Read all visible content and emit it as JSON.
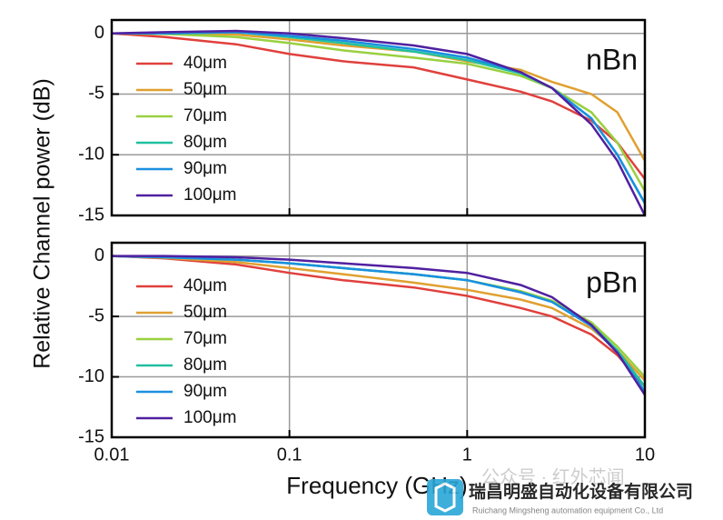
{
  "chart_data": [
    {
      "type": "line",
      "annotation": "nBn",
      "ylabel": "Relative Channel power (dB)",
      "x": [
        0.01,
        0.02,
        0.05,
        0.1,
        0.2,
        0.5,
        1,
        2,
        3,
        5,
        7,
        10
      ],
      "xlim": [
        0.01,
        10
      ],
      "xticks": [
        0.01,
        0.1,
        1,
        10
      ],
      "log_x": true,
      "show_xtick_labels": false,
      "ylim": [
        -15,
        1.1
      ],
      "yticks": [
        0,
        -5,
        -10,
        -15
      ],
      "grid": true,
      "legend": "left",
      "series": [
        {
          "name": "40μm",
          "color": "#e0403c",
          "values": [
            0,
            -0.3,
            -0.9,
            -1.7,
            -2.3,
            -2.8,
            -3.8,
            -4.8,
            -5.6,
            -7.2,
            -9,
            -12
          ]
        },
        {
          "name": "50μm",
          "color": "#e0a030",
          "values": [
            0,
            0,
            -0.1,
            -0.5,
            -1.0,
            -1.5,
            -2.3,
            -3.0,
            -4.0,
            -5.0,
            -6.5,
            -10.5
          ]
        },
        {
          "name": "70μm",
          "color": "#99d040",
          "values": [
            0,
            -0.05,
            -0.3,
            -0.8,
            -1.4,
            -2.0,
            -2.5,
            -3.5,
            -4.5,
            -6.5,
            -9,
            -13
          ]
        },
        {
          "name": "80μm",
          "color": "#20c0a0",
          "values": [
            0,
            0,
            0.1,
            -0.3,
            -0.8,
            -1.5,
            -2.2,
            -3.3,
            -4.5,
            -7,
            -10,
            -14
          ]
        },
        {
          "name": "90μm",
          "color": "#1a90e0",
          "values": [
            0,
            0,
            0.1,
            -0.2,
            -0.6,
            -1.3,
            -2.0,
            -3.2,
            -4.5,
            -7,
            -10,
            -14
          ]
        },
        {
          "name": "100μm",
          "color": "#5020a0",
          "values": [
            0,
            0.1,
            0.2,
            0,
            -0.4,
            -1.0,
            -1.7,
            -3.2,
            -4.5,
            -7.5,
            -10.5,
            -15
          ]
        }
      ]
    },
    {
      "type": "line",
      "annotation": "pBn",
      "xlabel": "Frequency (GHz)",
      "x": [
        0.01,
        0.02,
        0.05,
        0.1,
        0.2,
        0.5,
        1,
        2,
        3,
        5,
        7,
        10
      ],
      "xlim": [
        0.01,
        10
      ],
      "xticks": [
        0.01,
        0.1,
        1,
        10
      ],
      "log_x": true,
      "show_xtick_labels": true,
      "ylim": [
        -15,
        1.1
      ],
      "yticks": [
        0,
        -5,
        -10,
        -15
      ],
      "grid": true,
      "legend": "left",
      "series": [
        {
          "name": "40μm",
          "color": "#e0403c",
          "values": [
            0,
            -0.2,
            -0.7,
            -1.4,
            -2.0,
            -2.6,
            -3.3,
            -4.3,
            -5.0,
            -6.5,
            -8.2,
            -10.8
          ]
        },
        {
          "name": "50μm",
          "color": "#e0a030",
          "values": [
            0,
            -0.15,
            -0.5,
            -1.0,
            -1.5,
            -2.2,
            -2.8,
            -3.6,
            -4.3,
            -6.0,
            -7.8,
            -10.3
          ]
        },
        {
          "name": "70μm",
          "color": "#99d040",
          "values": [
            0,
            -0.1,
            -0.3,
            -0.6,
            -1.0,
            -1.5,
            -2.0,
            -2.9,
            -3.7,
            -5.5,
            -7.5,
            -10.0
          ]
        },
        {
          "name": "80μm",
          "color": "#20c0a0",
          "values": [
            0,
            -0.1,
            -0.3,
            -0.6,
            -1.0,
            -1.5,
            -2.0,
            -3.0,
            -3.8,
            -5.7,
            -7.8,
            -10.8
          ]
        },
        {
          "name": "90μm",
          "color": "#1a90e0",
          "values": [
            0,
            -0.1,
            -0.3,
            -0.6,
            -1.0,
            -1.5,
            -2.0,
            -3.0,
            -3.8,
            -5.8,
            -8.0,
            -11.2
          ]
        },
        {
          "name": "100μm",
          "color": "#5020a0",
          "values": [
            0,
            0,
            -0.1,
            -0.3,
            -0.6,
            -1.0,
            -1.4,
            -2.4,
            -3.4,
            -5.7,
            -8.0,
            -11.5
          ]
        }
      ]
    }
  ],
  "watermark": {
    "channel": "公众号 · 红外芯闻",
    "company": "瑞昌明盛自动化设备有限公司",
    "company_en": "Ruichang Mingsheng automation equipment Co., Ltd"
  }
}
